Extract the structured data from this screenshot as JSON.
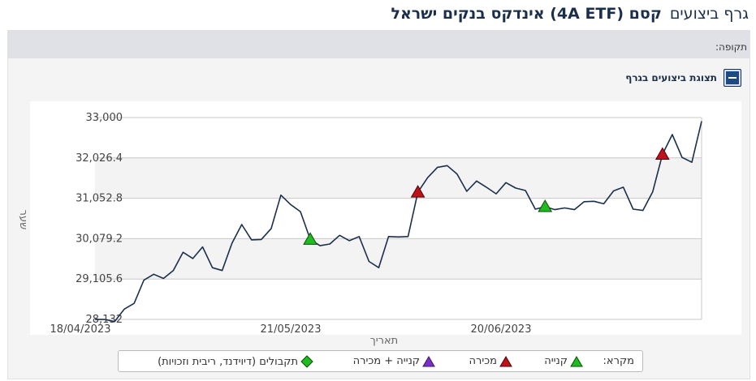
{
  "header": {
    "title_prefix": "גרף ביצועים",
    "title_fund": "קסם (4A ETF) אינדקס בנקים ישראל"
  },
  "period_label": "תקופה:",
  "panel": {
    "title": "תצוגת ביצועים בגרף"
  },
  "chart_data": {
    "type": "line",
    "ylabel": "שער",
    "xlabel": "תאריך",
    "y_ticks": [
      "33,000",
      "32,026.4",
      "31,052.8",
      "30,079.2",
      "29,105.6",
      "28,132"
    ],
    "ylim": [
      28132,
      33000
    ],
    "x_ticks": [
      "18/04/2023",
      "21/05/2023",
      "20/06/2023"
    ],
    "grid": true,
    "series_color": "#1b2f4d",
    "values": [
      28130,
      28130,
      28080,
      28380,
      28520,
      29080,
      29220,
      29120,
      29310,
      29750,
      29600,
      29880,
      29380,
      29310,
      29970,
      30420,
      30050,
      30060,
      30320,
      31130,
      30900,
      30730,
      30060,
      29910,
      29950,
      30160,
      30030,
      30130,
      29530,
      29380,
      30130,
      30120,
      30130,
      31200,
      31550,
      31800,
      31840,
      31640,
      31220,
      31470,
      31320,
      31160,
      31430,
      31300,
      31240,
      30790,
      30850,
      30780,
      30820,
      30780,
      30970,
      30980,
      30920,
      31230,
      31320,
      30790,
      30760,
      31210,
      32110,
      32590,
      32040,
      31920,
      32910
    ],
    "markers": [
      {
        "type": "buy",
        "x_index": 22,
        "y": 30060
      },
      {
        "type": "sell",
        "x_index": 33,
        "y": 31200
      },
      {
        "type": "buy",
        "x_index": 46,
        "y": 30850
      },
      {
        "type": "sell",
        "x_index": 58,
        "y": 32110
      }
    ],
    "marker_colors": {
      "buy": "#1ebc1e",
      "sell": "#c0101a",
      "buy_sell": "#7a2fc8",
      "dividend": "#1ebc1e"
    }
  },
  "legend": {
    "title": "מקרא:",
    "buy": "קנייה",
    "sell": "מכירה",
    "buy_sell": "קנייה + מכירה",
    "dividend": "תקבולים (דיוידנד, ריבית וזכויות)"
  }
}
